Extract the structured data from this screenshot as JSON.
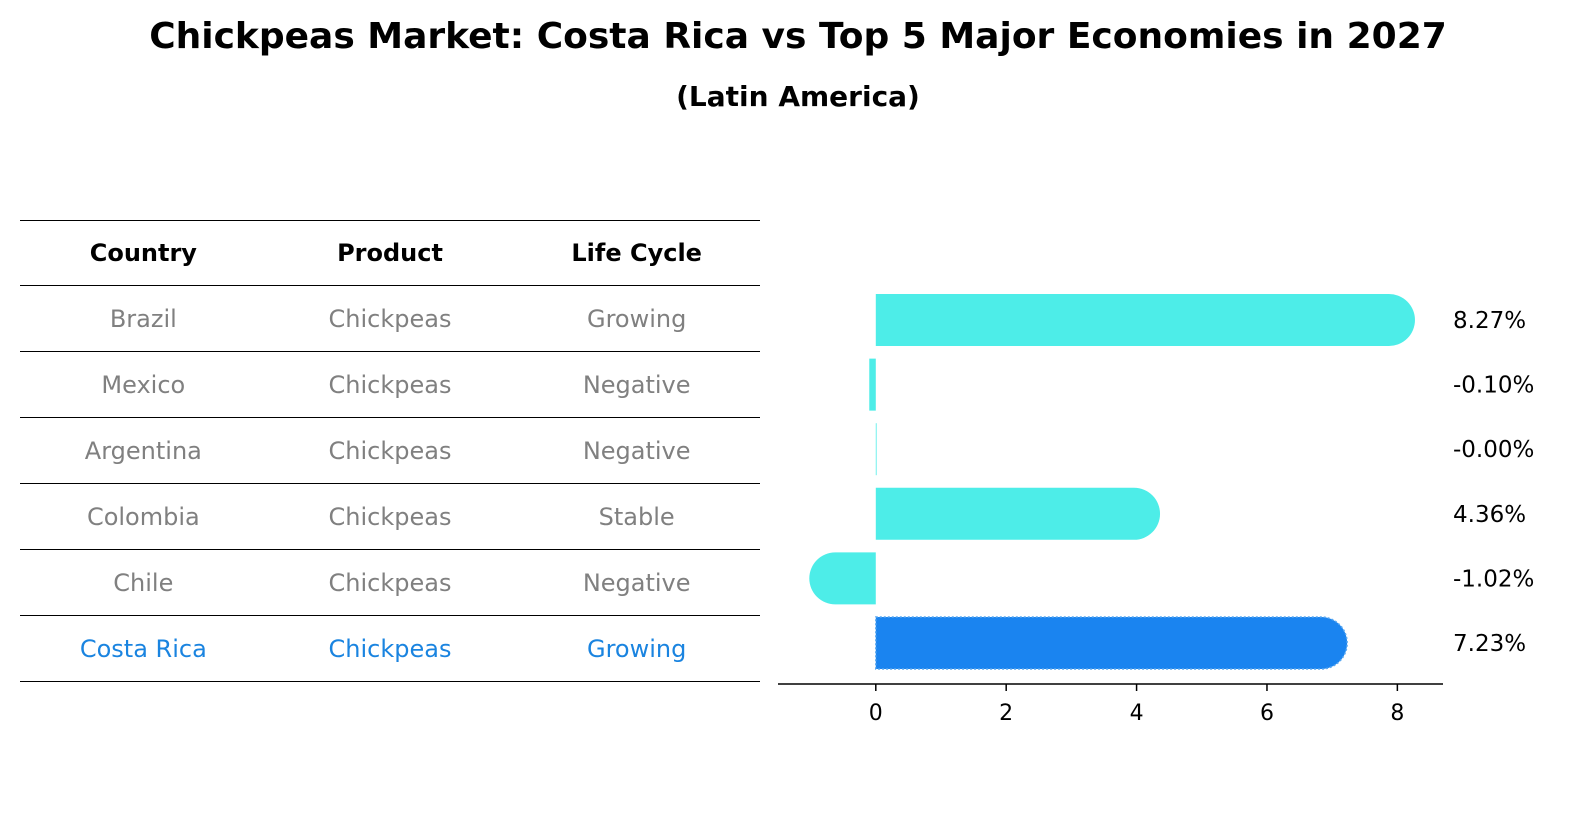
{
  "header": {
    "title": "Chickpeas Market: Costa Rica vs Top 5 Major Economies in 2027",
    "subtitle": "(Latin America)"
  },
  "colors": {
    "bar": "#4dede8",
    "highlight_bar": "#1a84f0",
    "highlight_text": "#1a84e0",
    "muted_text": "#808080"
  },
  "table": {
    "columns": [
      "Country",
      "Product",
      "Life Cycle"
    ],
    "rows": [
      [
        "Brazil",
        "Chickpeas",
        "Growing"
      ],
      [
        "Mexico",
        "Chickpeas",
        "Negative"
      ],
      [
        "Argentina",
        "Chickpeas",
        "Negative"
      ],
      [
        "Colombia",
        "Chickpeas",
        "Stable"
      ],
      [
        "Chile",
        "Chickpeas",
        "Negative"
      ],
      [
        "Costa Rica",
        "Chickpeas",
        "Growing"
      ]
    ],
    "highlight_row": 5
  },
  "chart_data": {
    "type": "bar",
    "orientation": "horizontal",
    "categories": [
      "Brazil",
      "Mexico",
      "Argentina",
      "Colombia",
      "Chile",
      "Costa Rica"
    ],
    "values": [
      8.27,
      -0.1,
      -0.0,
      4.36,
      -1.02,
      7.23
    ],
    "labels": [
      "8.27%",
      "-0.10%",
      "-0.00%",
      "4.36%",
      "-1.02%",
      "7.23%"
    ],
    "highlight_index": 5,
    "xlim": [
      -1.5,
      8.7
    ],
    "xticks": [
      0,
      2,
      4,
      6,
      8
    ],
    "title": "",
    "xlabel": "",
    "ylabel": ""
  }
}
